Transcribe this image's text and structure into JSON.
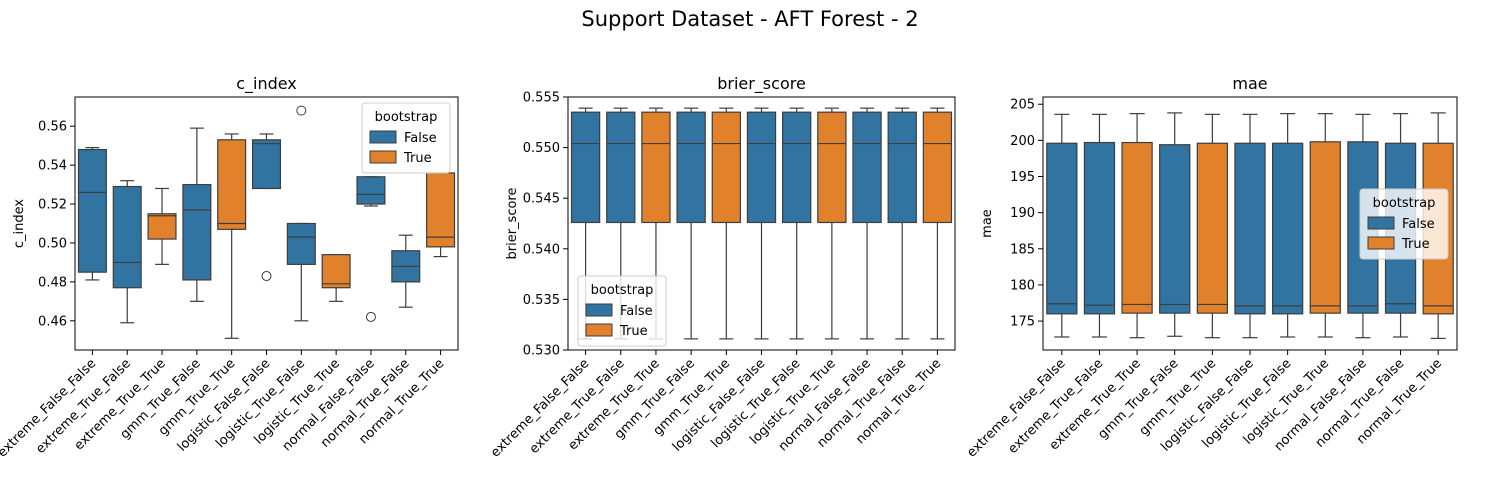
{
  "figure": {
    "title": "Support Dataset - AFT Forest - 2"
  },
  "colors": {
    "False": "#3274a1",
    "True": "#e1812c",
    "axis": "#000000",
    "edge": "#3d3d3d"
  },
  "chart_data": [
    {
      "type": "box",
      "title": "c_index",
      "ylabel": "c_index",
      "xlabel": "",
      "ylim": [
        0.445,
        0.575
      ],
      "yticks": [
        0.46,
        0.48,
        0.5,
        0.52,
        0.54,
        0.56
      ],
      "ytick_labels": [
        "0.46",
        "0.48",
        "0.50",
        "0.52",
        "0.54",
        "0.56"
      ],
      "legend": {
        "title": "bootstrap",
        "entries": [
          "False",
          "True"
        ],
        "position": "upper right"
      },
      "categories": [
        "extreme_False_False",
        "extreme_True_False",
        "extreme_True_True",
        "gmm_True_False",
        "gmm_True_True",
        "logistic_False_False",
        "logistic_True_False",
        "logistic_True_True",
        "normal_False_False",
        "normal_True_False",
        "normal_True_True"
      ],
      "bootstrap": [
        "False",
        "False",
        "True",
        "False",
        "True",
        "False",
        "False",
        "True",
        "False",
        "False",
        "True"
      ],
      "boxes": [
        {
          "whislo": 0.481,
          "q1": 0.485,
          "med": 0.526,
          "q3": 0.548,
          "whishi": 0.549,
          "fliers": []
        },
        {
          "whislo": 0.459,
          "q1": 0.477,
          "med": 0.49,
          "q3": 0.529,
          "whishi": 0.532,
          "fliers": []
        },
        {
          "whislo": 0.489,
          "q1": 0.502,
          "med": 0.514,
          "q3": 0.515,
          "whishi": 0.528,
          "fliers": []
        },
        {
          "whislo": 0.47,
          "q1": 0.481,
          "med": 0.517,
          "q3": 0.53,
          "whishi": 0.559,
          "fliers": []
        },
        {
          "whislo": 0.451,
          "q1": 0.507,
          "med": 0.51,
          "q3": 0.553,
          "whishi": 0.556,
          "fliers": []
        },
        {
          "whislo": 0.528,
          "q1": 0.528,
          "med": 0.551,
          "q3": 0.553,
          "whishi": 0.556,
          "fliers": [
            0.483
          ]
        },
        {
          "whislo": 0.46,
          "q1": 0.489,
          "med": 0.503,
          "q3": 0.51,
          "whishi": 0.51,
          "fliers": [
            0.568
          ]
        },
        {
          "whislo": 0.47,
          "q1": 0.477,
          "med": 0.479,
          "q3": 0.494,
          "whishi": 0.494,
          "fliers": []
        },
        {
          "whislo": 0.519,
          "q1": 0.52,
          "med": 0.525,
          "q3": 0.534,
          "whishi": 0.534,
          "fliers": [
            0.462
          ]
        },
        {
          "whislo": 0.467,
          "q1": 0.48,
          "med": 0.488,
          "q3": 0.496,
          "whishi": 0.504,
          "fliers": []
        },
        {
          "whislo": 0.493,
          "q1": 0.498,
          "med": 0.503,
          "q3": 0.536,
          "whishi": 0.536,
          "fliers": []
        }
      ]
    },
    {
      "type": "box",
      "title": "brier_score",
      "ylabel": "brier_score",
      "xlabel": "",
      "ylim": [
        0.53,
        0.555
      ],
      "yticks": [
        0.53,
        0.535,
        0.54,
        0.545,
        0.55,
        0.555
      ],
      "ytick_labels": [
        "0.530",
        "0.535",
        "0.540",
        "0.545",
        "0.550",
        "0.555"
      ],
      "legend": {
        "title": "bootstrap",
        "entries": [
          "False",
          "True"
        ],
        "position": "lower left"
      },
      "categories": [
        "extreme_False_False",
        "extreme_True_False",
        "extreme_True_True",
        "gmm_True_False",
        "gmm_True_True",
        "logistic_False_False",
        "logistic_True_False",
        "logistic_True_True",
        "normal_False_False",
        "normal_True_False",
        "normal_True_True"
      ],
      "bootstrap": [
        "False",
        "False",
        "True",
        "False",
        "True",
        "False",
        "False",
        "True",
        "False",
        "False",
        "True"
      ],
      "boxes": [
        {
          "whislo": 0.5311,
          "q1": 0.5426,
          "med": 0.5504,
          "q3": 0.5535,
          "whishi": 0.5539,
          "fliers": []
        },
        {
          "whislo": 0.5311,
          "q1": 0.5426,
          "med": 0.5504,
          "q3": 0.5535,
          "whishi": 0.5539,
          "fliers": []
        },
        {
          "whislo": 0.5311,
          "q1": 0.5426,
          "med": 0.5504,
          "q3": 0.5535,
          "whishi": 0.5539,
          "fliers": []
        },
        {
          "whislo": 0.5311,
          "q1": 0.5426,
          "med": 0.5504,
          "q3": 0.5535,
          "whishi": 0.5539,
          "fliers": []
        },
        {
          "whislo": 0.5311,
          "q1": 0.5426,
          "med": 0.5504,
          "q3": 0.5535,
          "whishi": 0.5539,
          "fliers": []
        },
        {
          "whislo": 0.5311,
          "q1": 0.5426,
          "med": 0.5504,
          "q3": 0.5535,
          "whishi": 0.5539,
          "fliers": []
        },
        {
          "whislo": 0.5311,
          "q1": 0.5426,
          "med": 0.5504,
          "q3": 0.5535,
          "whishi": 0.5539,
          "fliers": []
        },
        {
          "whislo": 0.5311,
          "q1": 0.5426,
          "med": 0.5504,
          "q3": 0.5535,
          "whishi": 0.5539,
          "fliers": []
        },
        {
          "whislo": 0.5311,
          "q1": 0.5426,
          "med": 0.5504,
          "q3": 0.5535,
          "whishi": 0.5539,
          "fliers": []
        },
        {
          "whislo": 0.5311,
          "q1": 0.5426,
          "med": 0.5504,
          "q3": 0.5535,
          "whishi": 0.5539,
          "fliers": []
        },
        {
          "whislo": 0.5311,
          "q1": 0.5426,
          "med": 0.5504,
          "q3": 0.5535,
          "whishi": 0.5539,
          "fliers": []
        }
      ]
    },
    {
      "type": "box",
      "title": "mae",
      "ylabel": "mae",
      "xlabel": "",
      "ylim": [
        171,
        206
      ],
      "yticks": [
        175,
        180,
        185,
        190,
        195,
        200,
        205
      ],
      "ytick_labels": [
        "175",
        "180",
        "185",
        "190",
        "195",
        "200",
        "205"
      ],
      "legend": {
        "title": "bootstrap",
        "entries": [
          "False",
          "True"
        ],
        "position": "center right"
      },
      "categories": [
        "extreme_False_False",
        "extreme_True_False",
        "extreme_True_True",
        "gmm_True_False",
        "gmm_True_True",
        "logistic_False_False",
        "logistic_True_False",
        "logistic_True_True",
        "normal_False_False",
        "normal_True_False",
        "normal_True_True"
      ],
      "bootstrap": [
        "False",
        "False",
        "True",
        "False",
        "True",
        "False",
        "False",
        "True",
        "False",
        "False",
        "True"
      ],
      "boxes": [
        {
          "whislo": 172.8,
          "q1": 176.0,
          "med": 177.4,
          "q3": 199.6,
          "whishi": 203.6,
          "fliers": []
        },
        {
          "whislo": 172.8,
          "q1": 176.0,
          "med": 177.2,
          "q3": 199.7,
          "whishi": 203.6,
          "fliers": []
        },
        {
          "whislo": 172.7,
          "q1": 176.1,
          "med": 177.3,
          "q3": 199.7,
          "whishi": 203.7,
          "fliers": []
        },
        {
          "whislo": 172.9,
          "q1": 176.1,
          "med": 177.3,
          "q3": 199.4,
          "whishi": 203.8,
          "fliers": []
        },
        {
          "whislo": 172.7,
          "q1": 176.1,
          "med": 177.3,
          "q3": 199.6,
          "whishi": 203.6,
          "fliers": []
        },
        {
          "whislo": 172.7,
          "q1": 176.0,
          "med": 177.1,
          "q3": 199.6,
          "whishi": 203.6,
          "fliers": []
        },
        {
          "whislo": 172.8,
          "q1": 176.0,
          "med": 177.1,
          "q3": 199.6,
          "whishi": 203.7,
          "fliers": []
        },
        {
          "whislo": 172.8,
          "q1": 176.1,
          "med": 177.1,
          "q3": 199.8,
          "whishi": 203.7,
          "fliers": []
        },
        {
          "whislo": 172.7,
          "q1": 176.1,
          "med": 177.1,
          "q3": 199.8,
          "whishi": 203.6,
          "fliers": []
        },
        {
          "whislo": 172.8,
          "q1": 176.1,
          "med": 177.4,
          "q3": 199.6,
          "whishi": 203.7,
          "fliers": []
        },
        {
          "whislo": 172.6,
          "q1": 176.0,
          "med": 177.1,
          "q3": 199.6,
          "whishi": 203.8,
          "fliers": []
        }
      ]
    }
  ]
}
